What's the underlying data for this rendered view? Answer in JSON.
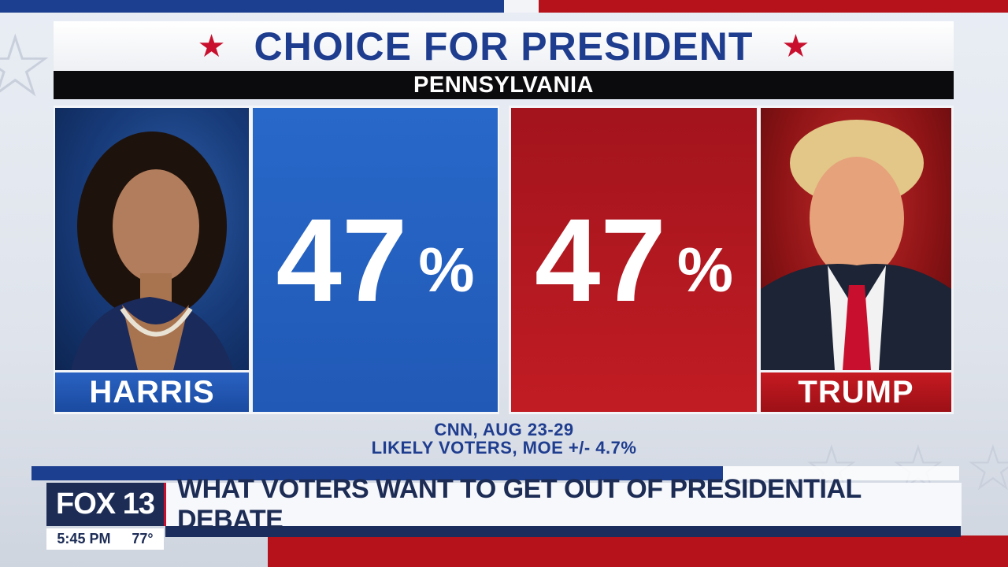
{
  "graphic": {
    "title": "CHOICE FOR PRESIDENT",
    "state": "PENNSYLVANIA",
    "candidates": [
      {
        "name": "HARRIS",
        "percent": "47",
        "percent_sign": "%",
        "color": "#2868c9"
      },
      {
        "name": "TRUMP",
        "percent": "47",
        "percent_sign": "%",
        "color": "#b5121b"
      }
    ],
    "source_line1": "CNN, AUG 23-29",
    "source_line2": "LIKELY VOTERS, MOE +/- 4.7%",
    "accent_blue": "#1f3d8f",
    "accent_red": "#c8102e"
  },
  "lower_third": {
    "logo": "FOX 13",
    "headline": "WHAT VOTERS WANT TO GET OUT OF PRESIDENTIAL DEBATE",
    "time": "5:45 PM",
    "temperature": "77°"
  },
  "icons": {
    "title_star": "★",
    "background_star": "☆"
  }
}
